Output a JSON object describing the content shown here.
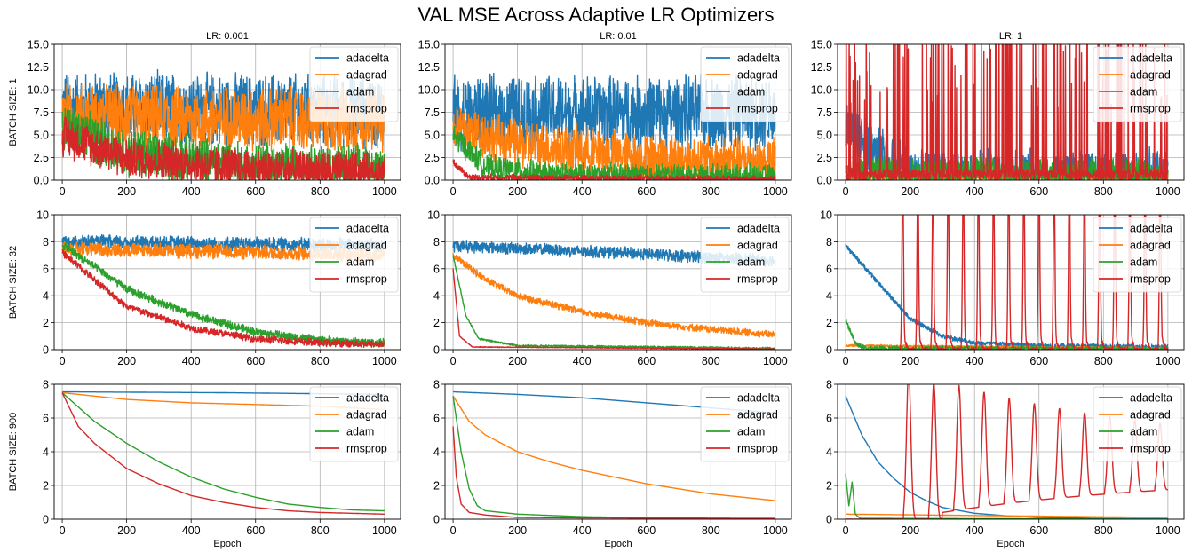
{
  "title": "VAL MSE Across Adaptive LR Optimizers",
  "chart_data": {
    "type": "line",
    "grid_shape": [
      3,
      3
    ],
    "column_titles": [
      "LR: 0.001",
      "LR: 0.01",
      "LR: 1"
    ],
    "row_labels": [
      "BATCH SIZE: 1",
      "BATCH SIZE: 32",
      "BATCH SIZE: 900"
    ],
    "xlabel": "Epoch",
    "xlim": [
      0,
      1000
    ],
    "x_ticks": [
      0,
      200,
      400,
      600,
      800,
      1000
    ],
    "row_ylims": [
      [
        0,
        15
      ],
      [
        0,
        10
      ],
      [
        0,
        8
      ]
    ],
    "row_y_ticks": [
      [
        "0.0",
        "2.5",
        "5.0",
        "7.5",
        "10.0",
        "12.5",
        "15.0"
      ],
      [
        "0",
        "2",
        "4",
        "6",
        "8",
        "10"
      ],
      [
        "0",
        "2",
        "4",
        "6",
        "8"
      ]
    ],
    "legend": [
      "adadelta",
      "adagrad",
      "adam",
      "rmsprop"
    ],
    "legend_position": "top-right",
    "colors": {
      "adadelta": "#1f77b4",
      "adagrad": "#ff7f0e",
      "adam": "#2ca02c",
      "rmsprop": "#d62728"
    },
    "panels": [
      {
        "row": 0,
        "col": 0,
        "series": [
          {
            "name": "adadelta",
            "kind": "noisy",
            "base": [
              [
                0,
                8
              ],
              [
                1000,
                7.5
              ]
            ],
            "noise": 4.5
          },
          {
            "name": "adagrad",
            "kind": "noisy",
            "base": [
              [
                0,
                7
              ],
              [
                1000,
                6.5
              ]
            ],
            "noise": 4.0
          },
          {
            "name": "adam",
            "kind": "noisy",
            "base": [
              [
                0,
                6
              ],
              [
                200,
                3
              ],
              [
                600,
                1.5
              ],
              [
                1000,
                1.2
              ]
            ],
            "noise": 3.0
          },
          {
            "name": "rmsprop",
            "kind": "noisy",
            "base": [
              [
                0,
                5
              ],
              [
                200,
                2.5
              ],
              [
                600,
                1.2
              ],
              [
                1000,
                0.8
              ]
            ],
            "noise": 2.5
          }
        ]
      },
      {
        "row": 0,
        "col": 1,
        "series": [
          {
            "name": "adadelta",
            "kind": "noisy",
            "base": [
              [
                0,
                7.5
              ],
              [
                1000,
                7.5
              ]
            ],
            "noise": 4.5
          },
          {
            "name": "adagrad",
            "kind": "noisy",
            "base": [
              [
                0,
                6
              ],
              [
                200,
                4
              ],
              [
                600,
                2.5
              ],
              [
                1000,
                2
              ]
            ],
            "noise": 3.0
          },
          {
            "name": "adam",
            "kind": "noisy",
            "base": [
              [
                0,
                5
              ],
              [
                100,
                1.5
              ],
              [
                300,
                0.6
              ],
              [
                1000,
                0.4
              ]
            ],
            "noise": 1.5
          },
          {
            "name": "rmsprop",
            "kind": "noisy",
            "base": [
              [
                0,
                2
              ],
              [
                50,
                0.3
              ],
              [
                1000,
                0.1
              ]
            ],
            "noise": 0.4
          }
        ]
      },
      {
        "row": 0,
        "col": 2,
        "series": [
          {
            "name": "adadelta",
            "kind": "noisy",
            "base": [
              [
                0,
                6
              ],
              [
                100,
                3
              ],
              [
                200,
                0.5
              ],
              [
                1000,
                0.2
              ]
            ],
            "noise": 3.5
          },
          {
            "name": "adagrad",
            "kind": "noisy",
            "base": [
              [
                0,
                0.5
              ],
              [
                1000,
                0.3
              ]
            ],
            "noise": 0.8
          },
          {
            "name": "adam",
            "kind": "noisy",
            "base": [
              [
                0,
                1
              ],
              [
                300,
                0.8
              ],
              [
                1000,
                0.8
              ]
            ],
            "noise": 2.0
          },
          {
            "name": "rmsprop",
            "kind": "spiky",
            "base": [
              [
                0,
                1
              ],
              [
                1000,
                1
              ]
            ],
            "noise": 1.0,
            "spike_height": 16,
            "spike_prob": 0.12
          }
        ]
      },
      {
        "row": 1,
        "col": 0,
        "series": [
          {
            "name": "adadelta",
            "kind": "noisy",
            "base": [
              [
                0,
                8
              ],
              [
                1000,
                7.7
              ]
            ],
            "noise": 0.6
          },
          {
            "name": "adagrad",
            "kind": "noisy",
            "base": [
              [
                0,
                7.5
              ],
              [
                1000,
                7.0
              ]
            ],
            "noise": 0.6
          },
          {
            "name": "adam",
            "kind": "noisy",
            "base": [
              [
                0,
                7.8
              ],
              [
                200,
                4.5
              ],
              [
                400,
                2.6
              ],
              [
                600,
                1.3
              ],
              [
                800,
                0.7
              ],
              [
                1000,
                0.5
              ]
            ],
            "noise": 0.35
          },
          {
            "name": "rmsprop",
            "kind": "noisy",
            "base": [
              [
                0,
                7.2
              ],
              [
                200,
                3.2
              ],
              [
                400,
                1.6
              ],
              [
                600,
                0.8
              ],
              [
                800,
                0.5
              ],
              [
                1000,
                0.4
              ]
            ],
            "noise": 0.3
          }
        ]
      },
      {
        "row": 1,
        "col": 1,
        "series": [
          {
            "name": "adadelta",
            "kind": "noisy",
            "base": [
              [
                0,
                7.7
              ],
              [
                500,
                7.2
              ],
              [
                1000,
                6.6
              ]
            ],
            "noise": 0.5
          },
          {
            "name": "adagrad",
            "kind": "noisy",
            "base": [
              [
                0,
                7
              ],
              [
                100,
                5.2
              ],
              [
                200,
                4
              ],
              [
                400,
                2.8
              ],
              [
                600,
                2
              ],
              [
                800,
                1.5
              ],
              [
                1000,
                1.1
              ]
            ],
            "noise": 0.3
          },
          {
            "name": "adam",
            "kind": "noisy",
            "base": [
              [
                0,
                7
              ],
              [
                40,
                2.5
              ],
              [
                80,
                0.8
              ],
              [
                200,
                0.3
              ],
              [
                1000,
                0.1
              ]
            ],
            "noise": 0.08
          },
          {
            "name": "rmsprop",
            "kind": "noisy",
            "base": [
              [
                0,
                6
              ],
              [
                20,
                1
              ],
              [
                60,
                0.2
              ],
              [
                1000,
                0.05
              ]
            ],
            "noise": 0.03
          }
        ]
      },
      {
        "row": 1,
        "col": 2,
        "series": [
          {
            "name": "adadelta",
            "kind": "noisy",
            "base": [
              [
                0,
                7.7
              ],
              [
                100,
                5
              ],
              [
                200,
                2.3
              ],
              [
                300,
                1
              ],
              [
                400,
                0.5
              ],
              [
                600,
                0.3
              ],
              [
                1000,
                0.2
              ]
            ],
            "noise": 0.2
          },
          {
            "name": "adagrad",
            "kind": "noisy",
            "base": [
              [
                0,
                0.3
              ],
              [
                1000,
                0.1
              ]
            ],
            "noise": 0.1
          },
          {
            "name": "adam",
            "kind": "noisy",
            "base": [
              [
                0,
                2.2
              ],
              [
                30,
                0.5
              ],
              [
                60,
                0.1
              ],
              [
                1000,
                0.05
              ]
            ],
            "noise": 0.2
          },
          {
            "name": "rmsprop",
            "kind": "oscillating",
            "base": [
              [
                0,
                0
              ],
              [
                1000,
                0
              ]
            ],
            "noise": 0.3,
            "start": 170,
            "period": 47,
            "amplitude": 10
          }
        ]
      },
      {
        "row": 2,
        "col": 0,
        "series": [
          {
            "name": "adadelta",
            "kind": "smooth",
            "base": [
              [
                0,
                7.55
              ],
              [
                500,
                7.5
              ],
              [
                1000,
                7.4
              ]
            ]
          },
          {
            "name": "adagrad",
            "kind": "smooth",
            "base": [
              [
                0,
                7.5
              ],
              [
                100,
                7.3
              ],
              [
                200,
                7.1
              ],
              [
                400,
                6.9
              ],
              [
                600,
                6.8
              ],
              [
                800,
                6.7
              ],
              [
                1000,
                6.5
              ]
            ]
          },
          {
            "name": "adam",
            "kind": "smooth",
            "base": [
              [
                0,
                7.5
              ],
              [
                100,
                5.8
              ],
              [
                200,
                4.5
              ],
              [
                300,
                3.4
              ],
              [
                400,
                2.5
              ],
              [
                500,
                1.8
              ],
              [
                600,
                1.3
              ],
              [
                700,
                0.9
              ],
              [
                800,
                0.7
              ],
              [
                900,
                0.55
              ],
              [
                1000,
                0.5
              ]
            ]
          },
          {
            "name": "rmsprop",
            "kind": "smooth",
            "base": [
              [
                0,
                7.5
              ],
              [
                50,
                5.5
              ],
              [
                100,
                4.5
              ],
              [
                200,
                3
              ],
              [
                300,
                2.1
              ],
              [
                400,
                1.4
              ],
              [
                500,
                1
              ],
              [
                600,
                0.7
              ],
              [
                700,
                0.5
              ],
              [
                800,
                0.4
              ],
              [
                900,
                0.35
              ],
              [
                1000,
                0.3
              ]
            ]
          }
        ]
      },
      {
        "row": 2,
        "col": 1,
        "series": [
          {
            "name": "adadelta",
            "kind": "smooth",
            "base": [
              [
                0,
                7.55
              ],
              [
                200,
                7.4
              ],
              [
                400,
                7.2
              ],
              [
                600,
                6.9
              ],
              [
                800,
                6.6
              ],
              [
                1000,
                6.3
              ]
            ]
          },
          {
            "name": "adagrad",
            "kind": "smooth",
            "base": [
              [
                0,
                7.3
              ],
              [
                50,
                5.8
              ],
              [
                100,
                5
              ],
              [
                200,
                4
              ],
              [
                300,
                3.4
              ],
              [
                400,
                2.9
              ],
              [
                500,
                2.5
              ],
              [
                600,
                2.1
              ],
              [
                700,
                1.8
              ],
              [
                800,
                1.5
              ],
              [
                900,
                1.3
              ],
              [
                1000,
                1.1
              ]
            ]
          },
          {
            "name": "adam",
            "kind": "smooth",
            "base": [
              [
                0,
                7.3
              ],
              [
                25,
                4
              ],
              [
                50,
                1.8
              ],
              [
                75,
                0.8
              ],
              [
                100,
                0.5
              ],
              [
                200,
                0.3
              ],
              [
                400,
                0.15
              ],
              [
                600,
                0.08
              ],
              [
                1000,
                0.05
              ]
            ]
          },
          {
            "name": "rmsprop",
            "kind": "smooth",
            "base": [
              [
                0,
                5.5
              ],
              [
                10,
                2.5
              ],
              [
                25,
                0.9
              ],
              [
                50,
                0.4
              ],
              [
                100,
                0.25
              ],
              [
                200,
                0.1
              ],
              [
                1000,
                0.02
              ]
            ]
          }
        ]
      },
      {
        "row": 2,
        "col": 2,
        "series": [
          {
            "name": "adadelta",
            "kind": "smooth",
            "base": [
              [
                0,
                7.3
              ],
              [
                50,
                5
              ],
              [
                100,
                3.4
              ],
              [
                150,
                2.4
              ],
              [
                200,
                1.6
              ],
              [
                250,
                1.1
              ],
              [
                300,
                0.7
              ],
              [
                400,
                0.35
              ],
              [
                500,
                0.2
              ],
              [
                600,
                0.1
              ],
              [
                800,
                0.05
              ],
              [
                1000,
                0.02
              ]
            ]
          },
          {
            "name": "adagrad",
            "kind": "smooth",
            "base": [
              [
                0,
                0.3
              ],
              [
                1000,
                0.1
              ]
            ]
          },
          {
            "name": "adam",
            "kind": "spikeflat",
            "base": [
              [
                0,
                2.7
              ],
              [
                10,
                0.8
              ],
              [
                20,
                2.2
              ],
              [
                30,
                0.3
              ],
              [
                45,
                0.05
              ],
              [
                1000,
                0.0
              ]
            ]
          },
          {
            "name": "rmsprop",
            "kind": "decaying_osc",
            "base": [
              [
                0,
                0
              ],
              [
                1000,
                0
              ]
            ],
            "start": 180,
            "period": 78,
            "amplitude": 9
          }
        ]
      }
    ]
  }
}
